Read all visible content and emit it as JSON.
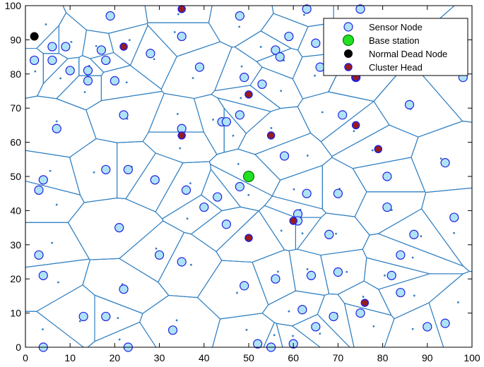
{
  "chart_data": {
    "type": "scatter",
    "title": "",
    "xlabel": "",
    "ylabel": "",
    "xlim": [
      0,
      100
    ],
    "ylim": [
      0,
      100
    ],
    "x_ticks": [
      "0",
      "10",
      "20",
      "30",
      "40",
      "50",
      "60",
      "70",
      "80",
      "90",
      "100"
    ],
    "y_ticks": [
      "0",
      "10",
      "20",
      "30",
      "40",
      "50",
      "60",
      "70",
      "80",
      "90",
      "100"
    ],
    "grid": false,
    "legend_position": "top-right",
    "legend": [
      {
        "label": "Sensor Node",
        "marker": "sensor"
      },
      {
        "label": "Base station",
        "marker": "base"
      },
      {
        "label": "Normal Dead Node",
        "marker": "dead"
      },
      {
        "label": "Cluster Head",
        "marker": "head"
      }
    ],
    "colors": {
      "sensor_fill": "#aee3f7",
      "sensor_edge": "#1f1fe0",
      "base_fill": "#22e022",
      "base_edge": "#0a7a0a",
      "dead_fill": "#000000",
      "head_fill": "#9b1b1b",
      "head_edge": "#1f1fe0",
      "voronoi": "#2f7fc1",
      "centroid": "#2f7fc1"
    },
    "series": [
      {
        "name": "Sensor Node",
        "points": [
          [
            4,
            0
          ],
          [
            23,
            0
          ],
          [
            13,
            9
          ],
          [
            18,
            9
          ],
          [
            33,
            5
          ],
          [
            52,
            1
          ],
          [
            55,
            0
          ],
          [
            60,
            1
          ],
          [
            65,
            6
          ],
          [
            69,
            9
          ],
          [
            62,
            11
          ],
          [
            75,
            10
          ],
          [
            90,
            6
          ],
          [
            94,
            7
          ],
          [
            22,
            17
          ],
          [
            49,
            18
          ],
          [
            56,
            20
          ],
          [
            64,
            21
          ],
          [
            70,
            22
          ],
          [
            82,
            21
          ],
          [
            84,
            16
          ],
          [
            3,
            27
          ],
          [
            4,
            21
          ],
          [
            35,
            25
          ],
          [
            30,
            27
          ],
          [
            21,
            35
          ],
          [
            45,
            36
          ],
          [
            40,
            41
          ],
          [
            43,
            44
          ],
          [
            36,
            46
          ],
          [
            29,
            49
          ],
          [
            4,
            49
          ],
          [
            3,
            46
          ],
          [
            18,
            52
          ],
          [
            23,
            52
          ],
          [
            48,
            47
          ],
          [
            63,
            45
          ],
          [
            61,
            39
          ],
          [
            61,
            37
          ],
          [
            70,
            45
          ],
          [
            68,
            33
          ],
          [
            81,
            41
          ],
          [
            81,
            50
          ],
          [
            87,
            33
          ],
          [
            84,
            27
          ],
          [
            94,
            54
          ],
          [
            96,
            38
          ],
          [
            7,
            64
          ],
          [
            22,
            68
          ],
          [
            35,
            64
          ],
          [
            44,
            66
          ],
          [
            45,
            66
          ],
          [
            48,
            68
          ],
          [
            58,
            56
          ],
          [
            71,
            68
          ],
          [
            86,
            71
          ],
          [
            98,
            79
          ],
          [
            10,
            81
          ],
          [
            14,
            81
          ],
          [
            14,
            78
          ],
          [
            20,
            78
          ],
          [
            17,
            87
          ],
          [
            18,
            84
          ],
          [
            6,
            88
          ],
          [
            6,
            84
          ],
          [
            2,
            84
          ],
          [
            9,
            88
          ],
          [
            19,
            97
          ],
          [
            28,
            86
          ],
          [
            39,
            82
          ],
          [
            35,
            91
          ],
          [
            48,
            97
          ],
          [
            53,
            77
          ],
          [
            49,
            79
          ],
          [
            56,
            87
          ],
          [
            57,
            85
          ],
          [
            59,
            91
          ],
          [
            63,
            99
          ],
          [
            65,
            89
          ],
          [
            66,
            82
          ],
          [
            75,
            99
          ],
          [
            74,
            79
          ]
        ]
      },
      {
        "name": "Base station",
        "points": [
          [
            50,
            50
          ]
        ]
      },
      {
        "name": "Normal Dead Node",
        "points": [
          [
            2,
            91
          ]
        ]
      },
      {
        "name": "Cluster Head",
        "points": [
          [
            35,
            99
          ],
          [
            22,
            88
          ],
          [
            50,
            74
          ],
          [
            35,
            62
          ],
          [
            55,
            62
          ],
          [
            74,
            65
          ],
          [
            79,
            58
          ],
          [
            74,
            79
          ],
          [
            60,
            37
          ],
          [
            50,
            32
          ],
          [
            76,
            13
          ]
        ]
      }
    ]
  }
}
